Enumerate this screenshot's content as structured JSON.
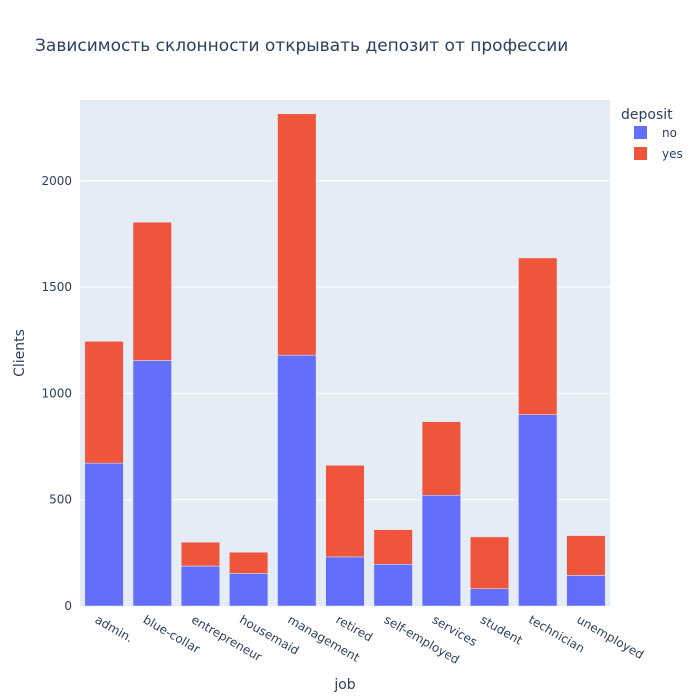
{
  "chart_data": {
    "type": "bar",
    "stacked": true,
    "title": "Зависимость склонности открывать депозит от профессии",
    "xlabel": "job",
    "ylabel": "Clients",
    "ylim": [
      0,
      2380
    ],
    "yticks": [
      0,
      500,
      1000,
      1500,
      2000
    ],
    "ytick_labels": [
      "0",
      "500",
      "1000",
      "1500",
      "2000"
    ],
    "grid": true,
    "legend": {
      "title": "deposit",
      "position": "top-right"
    },
    "categories": [
      "admin.",
      "blue-collar",
      "entrepreneur",
      "housemaid",
      "management",
      "retired",
      "self-employed",
      "services",
      "student",
      "technician",
      "unemployed"
    ],
    "series": [
      {
        "name": "no",
        "color": "#636efa",
        "values": [
          672,
          1155,
          188,
          153,
          1180,
          231,
          196,
          521,
          81,
          900,
          144
        ]
      },
      {
        "name": "yes",
        "color": "#ef553b",
        "values": [
          573,
          650,
          112,
          100,
          1135,
          431,
          163,
          346,
          244,
          737,
          187
        ]
      }
    ]
  }
}
